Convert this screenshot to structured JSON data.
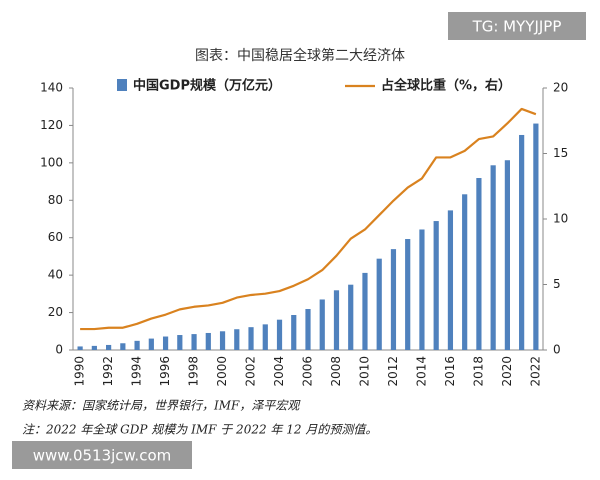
{
  "chart_data": {
    "type": "bar_line",
    "title": "图表：中国稳居全球第二大经济体",
    "categories": [
      "1990",
      null,
      "1992",
      null,
      "1994",
      null,
      "1996",
      null,
      "1998",
      null,
      "2000",
      null,
      "2002",
      null,
      "2004",
      null,
      "2006",
      null,
      "2008",
      null,
      "2010",
      null,
      "2012",
      null,
      "2014",
      null,
      "2016",
      null,
      "2018",
      null,
      "2020",
      null,
      "2022"
    ],
    "series": [
      {
        "name": "中国GDP规模（万亿元）",
        "type": "bar",
        "color": "#4f81bd",
        "values": [
          1.9,
          2.2,
          2.7,
          3.6,
          4.9,
          6.1,
          7.2,
          8.0,
          8.5,
          9.1,
          10.0,
          11.1,
          12.2,
          13.7,
          16.2,
          18.7,
          21.9,
          27.0,
          31.9,
          34.9,
          41.2,
          48.8,
          53.9,
          59.3,
          64.4,
          68.9,
          74.6,
          83.2,
          91.9,
          98.7,
          101.4,
          114.9,
          121.0
        ]
      },
      {
        "name": "占全球比重（%，右）",
        "type": "line",
        "axis": "y2",
        "color": "#d9821f",
        "values": [
          1.6,
          1.6,
          1.7,
          1.7,
          2.0,
          2.4,
          2.7,
          3.1,
          3.3,
          3.4,
          3.6,
          4.0,
          4.2,
          4.3,
          4.5,
          4.9,
          5.4,
          6.1,
          7.2,
          8.5,
          9.2,
          10.3,
          11.4,
          12.4,
          13.1,
          14.7,
          14.7,
          15.2,
          16.1,
          16.3,
          17.3,
          18.4,
          18.0
        ]
      }
    ],
    "ylim": [
      0,
      140
    ],
    "yticks": [
      0,
      20,
      40,
      60,
      80,
      100,
      120,
      140
    ],
    "y2lim": [
      0,
      20
    ],
    "y2ticks": [
      0,
      5,
      10,
      15,
      20
    ],
    "notes": [
      "资料来源：国家统计局，世界银行，IMF，泽平宏观",
      "注：2022 年全球 GDP 规模为 IMF 于 2022 年 12 月的预测值。"
    ]
  },
  "watermarks": [
    "TG: MYYJJPP",
    "www.0513jcw.com"
  ]
}
